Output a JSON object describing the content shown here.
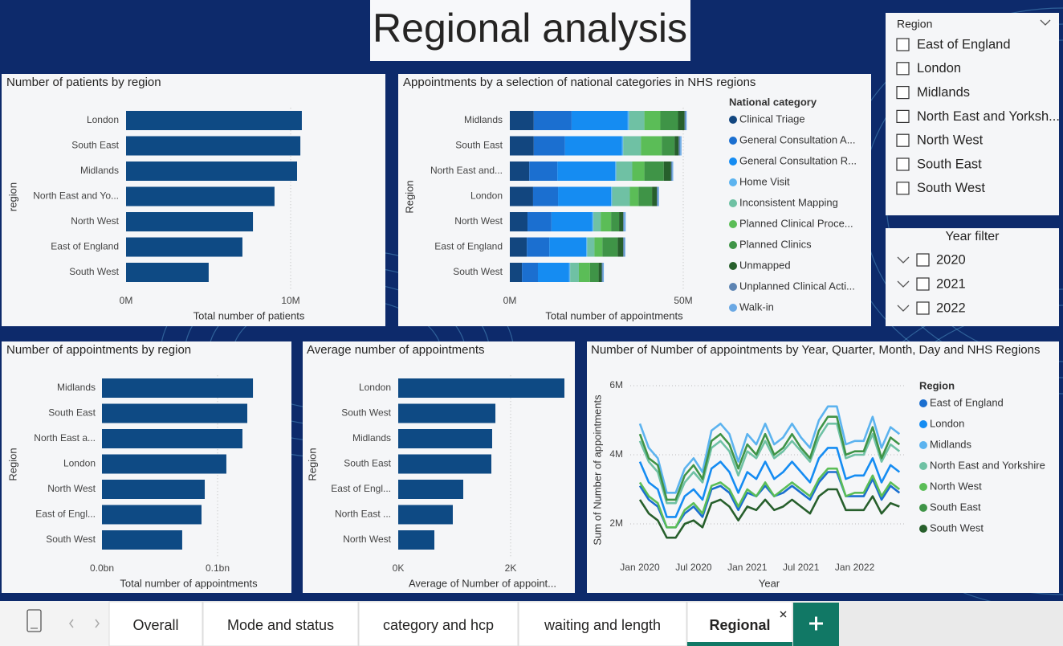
{
  "title": "Regional analysis",
  "chart_data": [
    {
      "type": "bar",
      "title": "Number of patients by region",
      "x_label": "Total number of patients",
      "y_label": "region",
      "categories": [
        "London",
        "South East",
        "Midlands",
        "North East and Yo...",
        "North West",
        "East of England",
        "South West"
      ],
      "values": [
        10680000,
        10590000,
        10390000,
        9020000,
        7710000,
        7070000,
        5020000
      ],
      "color": "#0e4a84",
      "xlim": [
        0,
        15000000
      ],
      "xticks": [
        {
          "value": 0,
          "label": "0M"
        },
        {
          "value": 10000000,
          "label": "10M"
        }
      ],
      "grid": true
    },
    {
      "type": "stacked_bar",
      "title": "Appointments by a selection of national categories in NHS regions",
      "x_label": "Total number of appointments",
      "y_label": "Region",
      "legend_title": "National category",
      "categories": [
        "Midlands",
        "South East",
        "North East and...",
        "London",
        "North West",
        "East of England",
        "South West"
      ],
      "series": [
        {
          "name": "Clinical Triage",
          "color": "#12467f",
          "values": [
            6900000,
            6900000,
            5600000,
            6700000,
            5100000,
            4900000,
            3500000
          ]
        },
        {
          "name": "General Consultation A...",
          "color": "#1b6fd0",
          "values": [
            10900000,
            9000000,
            8100000,
            7200000,
            6900000,
            6500000,
            4600000
          ]
        },
        {
          "name": "General Consultation R...",
          "color": "#158cf2",
          "values": [
            16200000,
            16400000,
            16700000,
            15300000,
            11800000,
            10600000,
            9000000
          ]
        },
        {
          "name": "Home Visit",
          "color": "#5cb3ef",
          "values": [
            400000,
            400000,
            300000,
            300000,
            300000,
            300000,
            300000
          ]
        },
        {
          "name": "Inconsistent Mapping",
          "color": "#6fc1a4",
          "values": [
            4400000,
            5100000,
            4600000,
            5100000,
            2100000,
            2100000,
            2500000
          ]
        },
        {
          "name": "Planned Clinical Proce...",
          "color": "#5bbd57",
          "values": [
            4600000,
            6000000,
            3500000,
            2500000,
            3000000,
            2300000,
            3200000
          ]
        },
        {
          "name": "Planned Clinics",
          "color": "#3f9447",
          "values": [
            5100000,
            3700000,
            5600000,
            3900000,
            2300000,
            4400000,
            2500000
          ]
        },
        {
          "name": "Unmapped",
          "color": "#275f2c",
          "values": [
            1900000,
            1200000,
            2100000,
            1400000,
            1200000,
            1600000,
            900000
          ]
        },
        {
          "name": "Unplanned Clinical Acti...",
          "color": "#5d84b3",
          "values": [
            300000,
            400000,
            300000,
            300000,
            200000,
            300000,
            300000
          ]
        },
        {
          "name": "Walk-in",
          "color": "#6aa8e4",
          "values": [
            300000,
            400000,
            300000,
            300000,
            500000,
            300000,
            300000
          ]
        }
      ],
      "xlim": [
        0,
        60000000
      ],
      "xticks": [
        {
          "value": 0,
          "label": "0M"
        },
        {
          "value": 50000000,
          "label": "50M"
        }
      ],
      "grid": true
    },
    {
      "type": "bar",
      "title": "Number of appointments by region",
      "x_label": "Total number of appointments",
      "y_label": "Region",
      "categories": [
        "Midlands",
        "South East",
        "North East a...",
        "London",
        "North West",
        "East of Engl...",
        "South West"
      ],
      "values": [
        130600000,
        125700000,
        121500000,
        107600000,
        88900000,
        86100000,
        69400000
      ],
      "color": "#0e4a84",
      "xlim": [
        0,
        150000000
      ],
      "xticks": [
        {
          "value": 0,
          "label": "0.0bn"
        },
        {
          "value": 100000000,
          "label": "0.1bn"
        }
      ],
      "grid": true
    },
    {
      "type": "bar",
      "title": "Average number of appointments",
      "x_label": "Average of Number of appoint...",
      "y_label": "Region",
      "categories": [
        "London",
        "South West",
        "Midlands",
        "South East",
        "East of Engl...",
        "North East ...",
        "North West"
      ],
      "values": [
        2957,
        1729,
        1671,
        1657,
        1157,
        971,
        643
      ],
      "color": "#0e4a84",
      "xlim": [
        0,
        3000
      ],
      "xticks": [
        {
          "value": 0,
          "label": "0K"
        },
        {
          "value": 2000,
          "label": "2K"
        }
      ],
      "grid": true
    },
    {
      "type": "line",
      "title": "Number of Number of appointments by Year, Quarter, Month, Day and NHS Regions",
      "x_label": "Year",
      "y_label": "Sum of Number of appointments",
      "legend_title": "Region",
      "x": [
        "2020-01",
        "2020-02",
        "2020-03",
        "2020-04",
        "2020-05",
        "2020-06",
        "2020-07",
        "2020-08",
        "2020-09",
        "2020-10",
        "2020-11",
        "2020-12",
        "2021-01",
        "2021-02",
        "2021-03",
        "2021-04",
        "2021-05",
        "2021-06",
        "2021-07",
        "2021-08",
        "2021-09",
        "2021-10",
        "2021-11",
        "2021-12",
        "2022-01",
        "2022-02",
        "2022-03",
        "2022-04",
        "2022-05",
        "2022-06"
      ],
      "xticks": [
        {
          "value": "2020-01",
          "label": "Jan 2020"
        },
        {
          "value": "2020-07",
          "label": "Jul 2020"
        },
        {
          "value": "2021-01",
          "label": "Jan 2021"
        },
        {
          "value": "2021-07",
          "label": "Jul 2021"
        },
        {
          "value": "2022-01",
          "label": "Jan 2022"
        }
      ],
      "ylim": [
        1100000,
        6200000
      ],
      "yticks": [
        {
          "value": 2000000,
          "label": "2M"
        },
        {
          "value": 4000000,
          "label": "4M"
        },
        {
          "value": 6000000,
          "label": "6M"
        }
      ],
      "grid": true,
      "series": [
        {
          "name": "East of England",
          "color": "#1b6fd0",
          "values": [
            3100000,
            2700000,
            2500000,
            1900000,
            1900000,
            2300000,
            2500000,
            2200000,
            3000000,
            3100000,
            2900000,
            2400000,
            2900000,
            2800000,
            3100000,
            2800000,
            2900000,
            3100000,
            2900000,
            2700000,
            3200000,
            3500000,
            3500000,
            2800000,
            2800000,
            2800000,
            3300000,
            2700000,
            3100000,
            2900000
          ]
        },
        {
          "name": "London",
          "color": "#158cf2",
          "values": [
            3800000,
            3200000,
            3000000,
            2200000,
            2200000,
            2800000,
            3000000,
            2700000,
            3600000,
            3800000,
            3500000,
            2900000,
            3500000,
            3300000,
            3800000,
            3300000,
            3500000,
            3800000,
            3500000,
            3200000,
            3900000,
            4200000,
            4200000,
            3300000,
            3400000,
            3400000,
            3900000,
            3200000,
            3700000,
            3500000
          ]
        },
        {
          "name": "Midlands",
          "color": "#5cb3ef",
          "values": [
            4900000,
            4200000,
            3900000,
            2900000,
            2900000,
            3600000,
            3900000,
            3500000,
            4700000,
            4900000,
            4600000,
            3800000,
            4600000,
            4300000,
            4900000,
            4300000,
            4500000,
            4900000,
            4500000,
            4200000,
            5000000,
            5400000,
            5400000,
            4300000,
            4400000,
            4400000,
            5100000,
            4200000,
            4800000,
            4600000
          ]
        },
        {
          "name": "North East and Yorkshire",
          "color": "#6fc1a4",
          "values": [
            4400000,
            3800000,
            3500000,
            2600000,
            2600000,
            3200000,
            3500000,
            3200000,
            4200000,
            4400000,
            4100000,
            3400000,
            4100000,
            3900000,
            4400000,
            3900000,
            4100000,
            4400000,
            4100000,
            3800000,
            4500000,
            4900000,
            4900000,
            3900000,
            4000000,
            4000000,
            4600000,
            3800000,
            4300000,
            4100000
          ]
        },
        {
          "name": "North West",
          "color": "#5bbd57",
          "values": [
            3200000,
            2800000,
            2600000,
            1900000,
            1900000,
            2400000,
            2600000,
            2300000,
            3100000,
            3200000,
            3000000,
            2500000,
            3000000,
            2800000,
            3200000,
            2800000,
            3000000,
            3200000,
            3000000,
            2800000,
            3300000,
            3600000,
            3600000,
            2800000,
            2900000,
            2900000,
            3400000,
            2800000,
            3200000,
            3000000
          ]
        },
        {
          "name": "South East",
          "color": "#3f9447",
          "values": [
            4600000,
            3900000,
            3700000,
            2700000,
            2700000,
            3400000,
            3700000,
            3300000,
            4400000,
            4600000,
            4300000,
            3600000,
            4300000,
            4000000,
            4600000,
            4000000,
            4200000,
            4600000,
            4200000,
            3900000,
            4700000,
            5100000,
            5100000,
            4000000,
            4100000,
            4100000,
            4800000,
            3900000,
            4500000,
            4300000
          ]
        },
        {
          "name": "South West",
          "color": "#275f2c",
          "values": [
            2700000,
            2300000,
            2100000,
            1600000,
            1600000,
            2000000,
            2100000,
            1900000,
            2600000,
            2700000,
            2500000,
            2100000,
            2500000,
            2400000,
            2700000,
            2400000,
            2500000,
            2700000,
            2500000,
            2300000,
            2800000,
            3000000,
            3000000,
            2400000,
            2400000,
            2400000,
            2800000,
            2300000,
            2600000,
            2500000
          ]
        }
      ]
    }
  ],
  "region_slicer": {
    "title": "Region",
    "items": [
      "East of England",
      "London",
      "Midlands",
      "North East and Yorksh...",
      "North West",
      "South East",
      "South West"
    ]
  },
  "year_filter": {
    "title": "Year filter",
    "items": [
      "2020",
      "2021",
      "2022"
    ]
  },
  "tabs": {
    "items": [
      "Overall",
      "Mode and status",
      "category and hcp",
      "waiting and length",
      "Regional"
    ],
    "active": 4
  }
}
